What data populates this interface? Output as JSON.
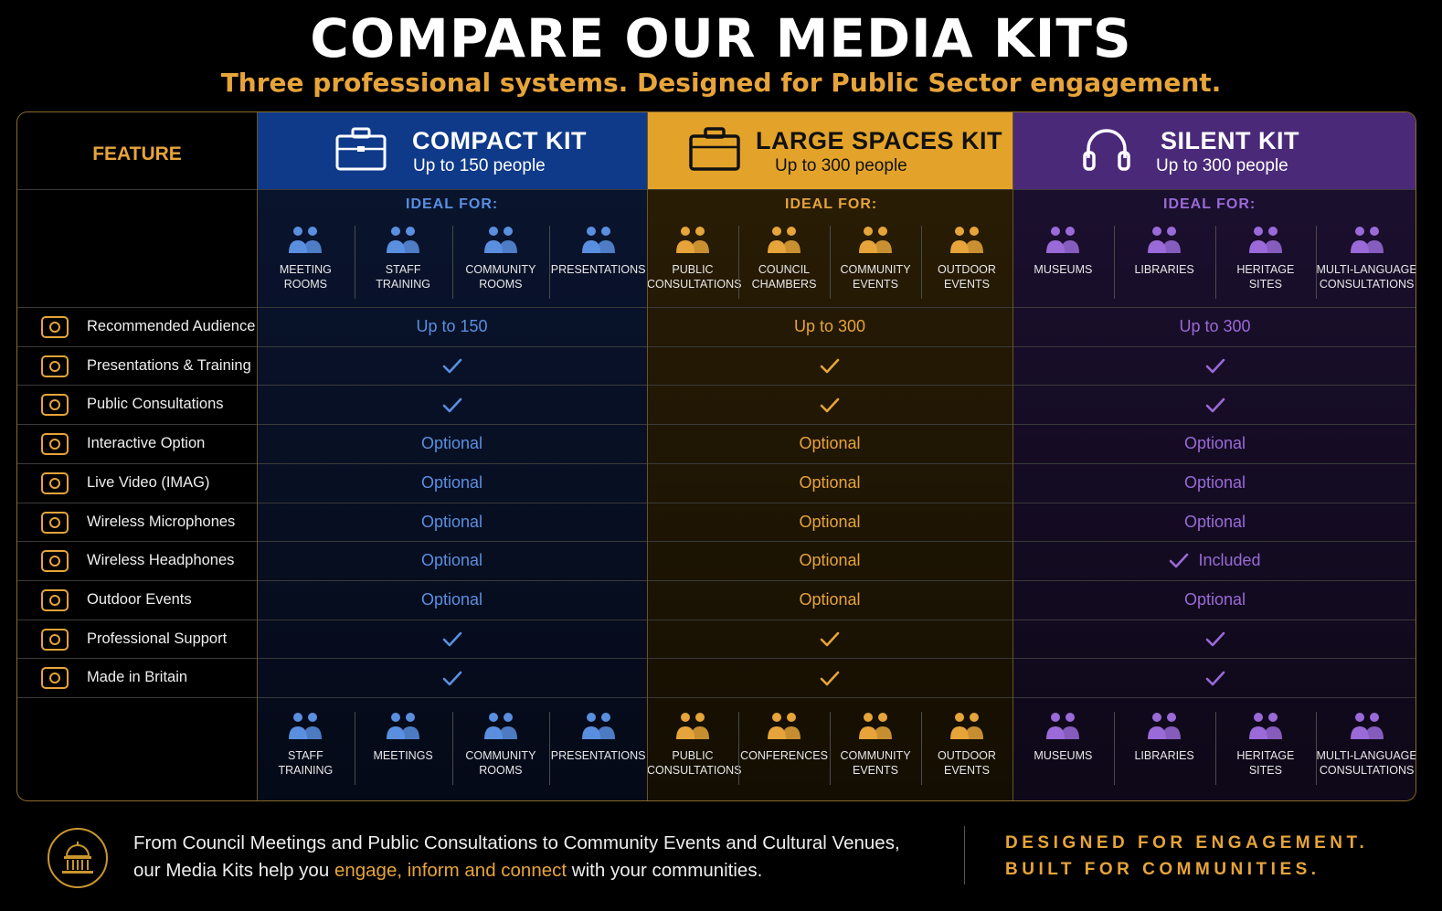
{
  "header": {
    "title": "COMPARE OUR MEDIA KITS",
    "subtitle": "Three professional systems. Designed for Public Sector engagement."
  },
  "feature_label": "FEATURE",
  "kits": [
    {
      "name": "COMPACT KIT",
      "capacity": "Up to 150 people",
      "ideal_for": "IDEAL FOR:",
      "color": "#0f3a8a",
      "ideal": [
        [
          "MEETING",
          "ROOMS"
        ],
        [
          "STAFF",
          "TRAINING"
        ],
        [
          "COMMUNITY",
          "ROOMS"
        ],
        [
          "PRESENTATIONS",
          ""
        ]
      ],
      "bottom": [
        [
          "STAFF",
          "TRAINING"
        ],
        [
          "MEETINGS",
          ""
        ],
        [
          "COMMUNITY",
          "ROOMS"
        ],
        [
          "PRESENTATIONS",
          ""
        ]
      ]
    },
    {
      "name": "LARGE SPACES KIT",
      "capacity": "Up to 300 people",
      "ideal_for": "IDEAL FOR:",
      "color": "#e3a32a",
      "ideal": [
        [
          "PUBLIC",
          "CONSULTATIONS"
        ],
        [
          "COUNCIL",
          "CHAMBERS"
        ],
        [
          "COMMUNITY",
          "EVENTS"
        ],
        [
          "OUTDOOR",
          "EVENTS"
        ]
      ],
      "bottom": [
        [
          "PUBLIC",
          "CONSULTATIONS"
        ],
        [
          "CONFERENCES",
          ""
        ],
        [
          "COMMUNITY",
          "EVENTS"
        ],
        [
          "OUTDOOR",
          "EVENTS"
        ]
      ]
    },
    {
      "name": "SILENT KIT",
      "capacity": "Up to 300 people",
      "ideal_for": "IDEAL FOR:",
      "color": "#4a2a78",
      "ideal": [
        [
          "MUSEUMS",
          ""
        ],
        [
          "LIBRARIES",
          ""
        ],
        [
          "HERITAGE",
          "SITES"
        ],
        [
          "MULTI-LANGUAGE",
          "CONSULTATIONS"
        ]
      ],
      "bottom": [
        [
          "MUSEUMS",
          ""
        ],
        [
          "LIBRARIES",
          ""
        ],
        [
          "HERITAGE",
          "SITES"
        ],
        [
          "MULTI-LANGUAGE",
          "CONSULTATIONS"
        ]
      ]
    }
  ],
  "features": [
    {
      "label": "Recommended Audience",
      "icon": "people-icon",
      "values": [
        "Up to 150",
        "Up to 300",
        "Up to 300"
      ]
    },
    {
      "label": "Presentations & Training",
      "icon": "presenter-icon",
      "values": [
        "check",
        "check",
        "check"
      ]
    },
    {
      "label": "Public Consultations",
      "icon": "consultation-icon",
      "values": [
        "check",
        "check",
        "check"
      ]
    },
    {
      "label": "Interactive Option",
      "icon": "touch-icon",
      "values": [
        "Optional",
        "Optional",
        "Optional"
      ]
    },
    {
      "label": "Live Video (IMAG)",
      "icon": "video-camera-icon",
      "values": [
        "Optional",
        "Optional",
        "Optional"
      ]
    },
    {
      "label": "Wireless Microphones",
      "icon": "microphone-icon",
      "values": [
        "Optional",
        "Optional",
        "Optional"
      ]
    },
    {
      "label": "Wireless Headphones",
      "icon": "headphones-icon",
      "values": [
        "Optional",
        "Optional",
        "check:Included"
      ]
    },
    {
      "label": "Outdoor Events",
      "icon": "tree-icon",
      "values": [
        "Optional",
        "Optional",
        "Optional"
      ]
    },
    {
      "label": "Professional Support",
      "icon": "headset-icon",
      "values": [
        "check",
        "check",
        "check"
      ]
    },
    {
      "label": "Made in Britain",
      "icon": "union-flag-icon",
      "values": [
        "check",
        "check",
        "check"
      ]
    }
  ],
  "footer": {
    "line1": "From Council Meetings and Public Consultations to Community Events and Cultural Venues,",
    "line2_pre": "our Media Kits help you ",
    "line2_hl": "engage, inform and connect",
    "line2_post": " with your communities.",
    "tagline1": "DESIGNED FOR ENGAGEMENT.",
    "tagline2": "BUILT FOR COMMUNITIES."
  },
  "colors": {
    "gold": "#e6a43a",
    "blue": "#5a8fe0",
    "purple": "#9a6ad8"
  }
}
